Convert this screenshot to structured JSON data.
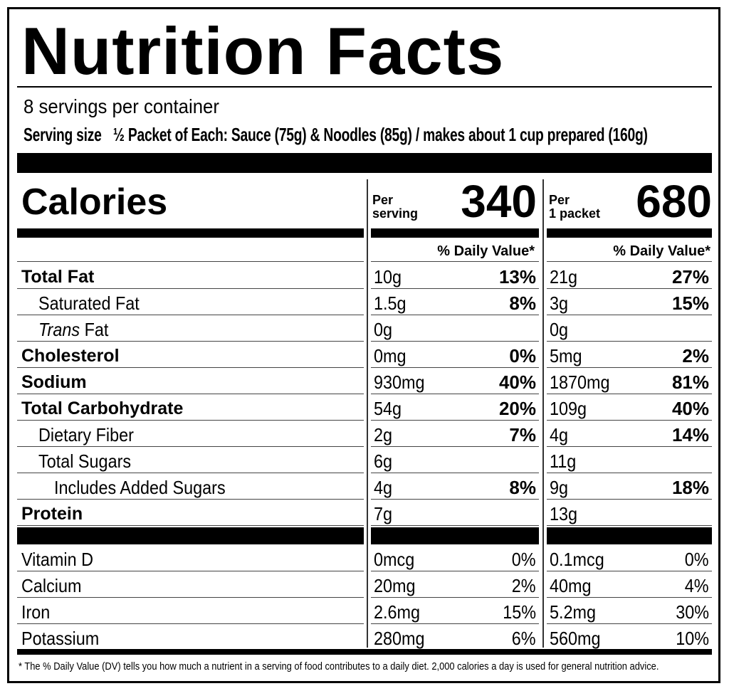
{
  "header": {
    "title": "Nutrition Facts",
    "servings": "8 servings per container",
    "serving_size_label": "Serving size",
    "serving_size_value": "½ Packet of Each: Sauce (75g) & Noodles (85g) / makes about 1 cup prepared (160g)"
  },
  "calories": {
    "label": "Calories",
    "per_serving_label": [
      "Per",
      "serving"
    ],
    "per_serving_value": "340",
    "per_packet_label": [
      "Per",
      "1 packet"
    ],
    "per_packet_value": "680"
  },
  "dv_header": [
    "% Daily Value*",
    "% Daily Value*"
  ],
  "nutrients": [
    {
      "name": "Total Fat",
      "serving_amount": "10g",
      "serving_dv": "13%",
      "packet_amount": "21g",
      "packet_dv": "27%"
    },
    {
      "name": "Saturated Fat",
      "serving_amount": "1.5g",
      "serving_dv": "8%",
      "packet_amount": "3g",
      "packet_dv": "15%"
    },
    {
      "name_italic": "Trans",
      "name": "Fat",
      "serving_amount": "0g",
      "packet_amount": "0g"
    },
    {
      "name": "Cholesterol",
      "serving_amount": "0mg",
      "serving_dv": "0%",
      "packet_amount": "5mg",
      "packet_dv": "2%"
    },
    {
      "name": "Sodium",
      "serving_amount": "930mg",
      "serving_dv": "40%",
      "packet_amount": "1870mg",
      "packet_dv": "81%"
    },
    {
      "name": "Total Carbohydrate",
      "serving_amount": "54g",
      "serving_dv": "20%",
      "packet_amount": "109g",
      "packet_dv": "40%"
    },
    {
      "name": "Dietary Fiber",
      "serving_amount": "2g",
      "serving_dv": "7%",
      "packet_amount": "4g",
      "packet_dv": "14%"
    },
    {
      "name": "Total Sugars",
      "serving_amount": "6g",
      "packet_amount": "11g"
    },
    {
      "name": "Includes Added Sugars",
      "serving_amount": "4g",
      "serving_dv": "8%",
      "packet_amount": "9g",
      "packet_dv": "18%"
    },
    {
      "name": "Protein",
      "serving_amount": "7g",
      "packet_amount": "13g"
    }
  ],
  "vitamins": [
    {
      "name": "Vitamin D",
      "serving_amount": "0mcg",
      "serving_dv": "0%",
      "packet_amount": "0.1mcg",
      "packet_dv": "0%"
    },
    {
      "name": "Calcium",
      "serving_amount": "20mg",
      "serving_dv": "2%",
      "packet_amount": "40mg",
      "packet_dv": "4%"
    },
    {
      "name": "Iron",
      "serving_amount": "2.6mg",
      "serving_dv": "15%",
      "packet_amount": "5.2mg",
      "packet_dv": "30%"
    },
    {
      "name": "Potassium",
      "serving_amount": "280mg",
      "serving_dv": "6%",
      "packet_amount": "560mg",
      "packet_dv": "10%"
    }
  ],
  "footnote": "* The % Daily Value (DV) tells you how much a nutrient in a serving of food contributes to a daily diet. 2,000 calories a day is used for general nutrition advice."
}
